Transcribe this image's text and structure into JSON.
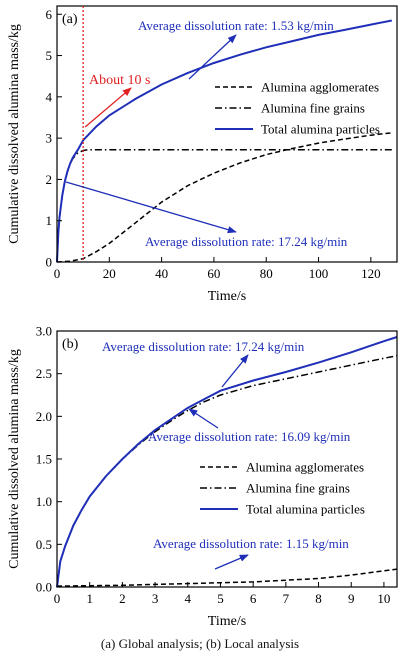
{
  "caption": "(a) Global analysis; (b) Local analysis",
  "colors": {
    "total": "#1f2fb8",
    "marker": "#e02020",
    "black": "#000000"
  },
  "chart_data": [
    {
      "panel_label": "(a)",
      "type": "line",
      "xlabel": "Time/s",
      "ylabel": "Cumulative dissolved alumina mass/kg",
      "xlim": [
        0,
        130
      ],
      "ylim": [
        0,
        6.2
      ],
      "xticks": [
        0,
        20,
        40,
        60,
        80,
        100,
        120
      ],
      "yticks": [
        0,
        1,
        2,
        3,
        4,
        5,
        6
      ],
      "ytick_labels": [
        "0",
        "1",
        "2",
        "3",
        "4",
        "5",
        "6"
      ],
      "grid": false,
      "legend_position": "right",
      "series": [
        {
          "name": "Alumina agglomerates",
          "style": "dash",
          "color": "#000000",
          "x": [
            0,
            5,
            10,
            15,
            20,
            25,
            30,
            40,
            50,
            60,
            70,
            80,
            90,
            100,
            110,
            120,
            128
          ],
          "y": [
            0,
            0.02,
            0.08,
            0.25,
            0.45,
            0.7,
            0.95,
            1.45,
            1.85,
            2.15,
            2.4,
            2.6,
            2.75,
            2.88,
            2.98,
            3.07,
            3.13
          ]
        },
        {
          "name": "Alumina fine grains",
          "style": "dashdot",
          "color": "#000000",
          "x": [
            0,
            0.5,
            1,
            2,
            3,
            4,
            5,
            6,
            7,
            8,
            10,
            12,
            20,
            40,
            60,
            80,
            100,
            128
          ],
          "y": [
            0,
            0.7,
            1.1,
            1.6,
            1.95,
            2.2,
            2.38,
            2.5,
            2.58,
            2.64,
            2.7,
            2.72,
            2.72,
            2.72,
            2.72,
            2.72,
            2.72,
            2.72
          ]
        },
        {
          "name": "Total alumina particles",
          "style": "solid",
          "color": "#1f2fb8",
          "x": [
            0,
            0.5,
            1,
            2,
            3,
            4,
            5,
            6,
            7,
            8,
            10,
            15,
            20,
            30,
            40,
            50,
            60,
            70,
            80,
            90,
            100,
            110,
            120,
            128
          ],
          "y": [
            0,
            0.7,
            1.1,
            1.6,
            1.95,
            2.2,
            2.38,
            2.52,
            2.62,
            2.72,
            2.95,
            3.28,
            3.55,
            3.95,
            4.3,
            4.58,
            4.82,
            5.02,
            5.2,
            5.35,
            5.5,
            5.62,
            5.75,
            5.85
          ]
        }
      ],
      "vline": {
        "x": 10,
        "label": "About 10 s"
      },
      "annotations": [
        {
          "text": "Average dissolution rate: 1.53 kg/min"
        },
        {
          "text": "Average dissolution rate: 17.24 kg/min"
        }
      ]
    },
    {
      "panel_label": "(b)",
      "type": "line",
      "xlabel": "Time/s",
      "ylabel": "Cumulative dissolved alumina mass/kg",
      "xlim": [
        0,
        10.4
      ],
      "ylim": [
        0,
        3.0
      ],
      "xticks": [
        0,
        1,
        2,
        3,
        4,
        5,
        6,
        7,
        8,
        9,
        10
      ],
      "yticks": [
        0,
        0.5,
        1.0,
        1.5,
        2.0,
        2.5,
        3.0
      ],
      "ytick_labels": [
        "0.0",
        "0.5",
        "1.0",
        "1.5",
        "2.0",
        "2.5",
        "3.0"
      ],
      "grid": false,
      "legend_position": "lower-right",
      "series": [
        {
          "name": "Alumina agglomerates",
          "style": "dash",
          "color": "#000000",
          "x": [
            0,
            1,
            2,
            3,
            4,
            5,
            6,
            7,
            8,
            9,
            10,
            10.4
          ],
          "y": [
            0.01,
            0.015,
            0.02,
            0.03,
            0.04,
            0.05,
            0.06,
            0.08,
            0.1,
            0.14,
            0.19,
            0.21
          ]
        },
        {
          "name": "Alumina fine grains",
          "style": "dashdot",
          "color": "#000000",
          "x": [
            0,
            0.1,
            0.25,
            0.5,
            0.75,
            1,
            1.5,
            2,
            2.5,
            3,
            3.5,
            4,
            4.5,
            5,
            6,
            7,
            8,
            9,
            10,
            10.4
          ],
          "y": [
            0,
            0.3,
            0.48,
            0.72,
            0.9,
            1.06,
            1.3,
            1.5,
            1.67,
            1.82,
            1.95,
            2.07,
            2.17,
            2.25,
            2.36,
            2.44,
            2.52,
            2.6,
            2.68,
            2.71
          ]
        },
        {
          "name": "Total alumina particles",
          "style": "solid",
          "color": "#1f2fb8",
          "x": [
            0,
            0.1,
            0.25,
            0.5,
            0.75,
            1,
            1.5,
            2,
            2.5,
            3,
            3.5,
            4,
            4.5,
            5,
            6,
            7,
            8,
            9,
            10,
            10.4
          ],
          "y": [
            0,
            0.3,
            0.48,
            0.72,
            0.9,
            1.06,
            1.3,
            1.5,
            1.68,
            1.84,
            1.97,
            2.1,
            2.2,
            2.3,
            2.42,
            2.52,
            2.63,
            2.75,
            2.88,
            2.93
          ]
        }
      ],
      "annotations": [
        {
          "text": "Average dissolution rate: 17.24 kg/min"
        },
        {
          "text": "Average dissolution rate: 16.09 kg/min"
        },
        {
          "text": "Average dissolution rate: 1.15 kg/min"
        }
      ]
    }
  ]
}
